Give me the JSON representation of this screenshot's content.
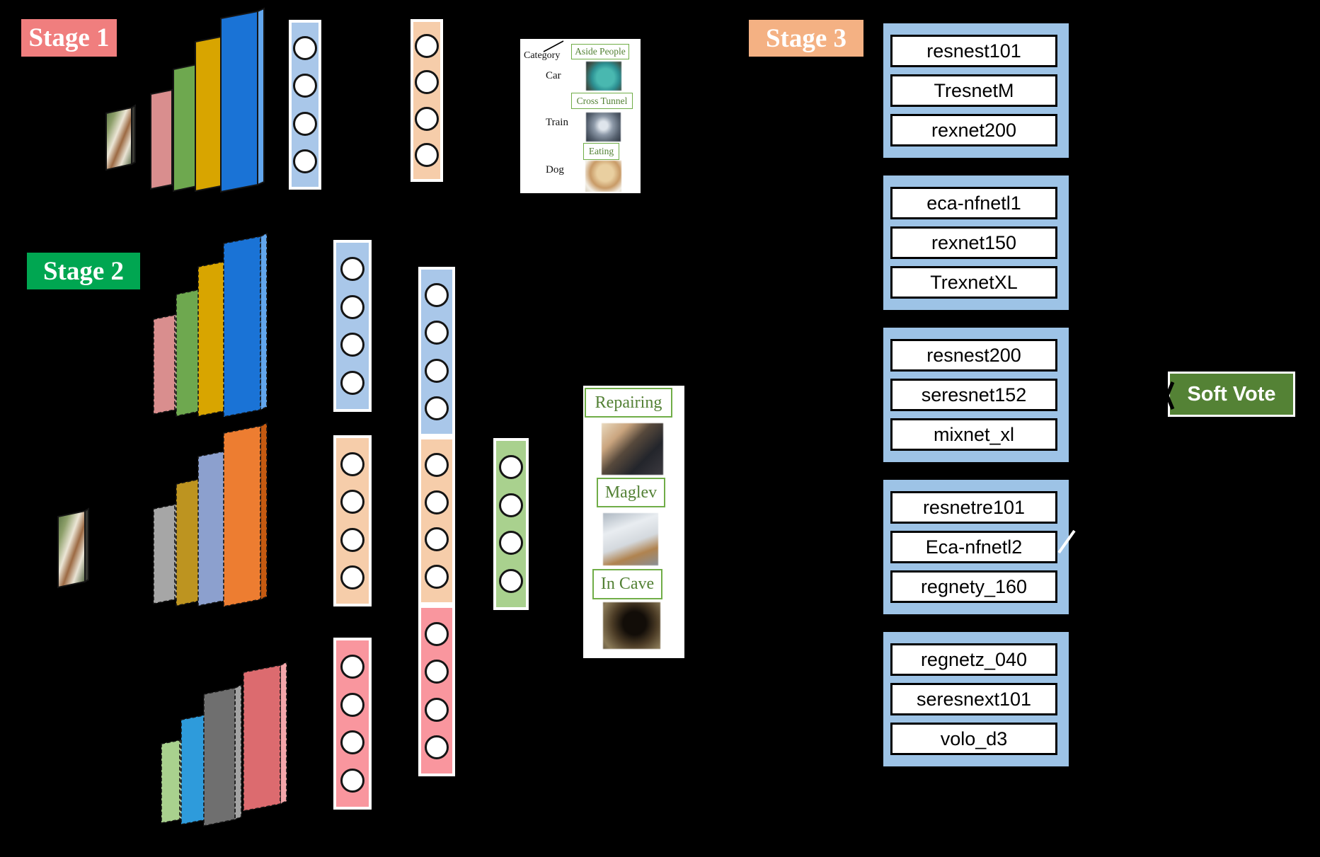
{
  "stages": [
    {
      "label": "Stage 1",
      "bg": "#F07E7E"
    },
    {
      "label": "Stage 2",
      "bg": "#00A651"
    },
    {
      "label": "Stage 3",
      "bg": "#F4B183"
    }
  ],
  "stage1": {
    "category_card": {
      "header": "Category",
      "rows": [
        {
          "category": "Car",
          "prediction": "Aside People",
          "image": "car"
        },
        {
          "category": "Train",
          "prediction": "Cross Tunnel",
          "image": "train"
        },
        {
          "category": "Dog",
          "prediction": "Eating",
          "image": "dog"
        }
      ]
    }
  },
  "stage2": {
    "prediction_card": {
      "rows": [
        {
          "prediction": "Repairing",
          "image": "repairing"
        },
        {
          "prediction": "Maglev",
          "image": "maglev"
        },
        {
          "prediction": "In Cave",
          "image": "cave"
        }
      ]
    }
  },
  "stage3": {
    "model_groups": [
      [
        "resnest101",
        "TresnetM",
        "rexnet200"
      ],
      [
        "eca-nfnetl1",
        "rexnet150",
        "TrexnetXL"
      ],
      [
        "resnest200",
        "seresnet152",
        "mixnet_xl"
      ],
      [
        "resnetre101",
        "Eca-nfnetl2",
        "regnety_160"
      ],
      [
        "regnetz_040",
        "seresnext101",
        "volo_d3"
      ]
    ],
    "soft_vote_label": "Soft Vote"
  },
  "palette": {
    "stack1": [
      {
        "face": "#D98E8E",
        "side": "#F0C0C0"
      },
      {
        "face": "#6EA84F",
        "side": "#A8D08D"
      },
      {
        "face": "#D8A500",
        "side": "#FFC81E"
      },
      {
        "face": "#1A73D6",
        "side": "#62A6EC"
      }
    ],
    "stack2a": [
      {
        "face": "#D98E8E",
        "side": "#F0C0C0"
      },
      {
        "face": "#6EA84F",
        "side": "#A8D08D"
      },
      {
        "face": "#D8A500",
        "side": "#FFC81E"
      },
      {
        "face": "#1A73D6",
        "side": "#62A6EC"
      }
    ],
    "stack2b": [
      {
        "face": "#A6A6A6",
        "side": "#D2D2D2"
      },
      {
        "face": "#BD9420",
        "side": "#E6C34C"
      },
      {
        "face": "#8CA0CE",
        "side": "#C2CEE8"
      },
      {
        "face": "#ED7D31",
        "side": "#C55A11"
      }
    ],
    "stack2c": [
      {
        "face": "#A9D18E",
        "side": "#CDE5BB"
      },
      {
        "face": "#2E9BDB",
        "side": "#83C4EC"
      },
      {
        "face": "#6F6F6F",
        "side": "#A3A3A3"
      },
      {
        "face": "#DC6B6F",
        "side": "#F4A6AA"
      }
    ],
    "columns": {
      "blue": "#A9C7E9",
      "orange": "#F6CDAA",
      "red": "#F9969E",
      "green": "#A9D18E"
    },
    "group_bg": "#9DC3E6",
    "soft_vote_bg": "#548235",
    "tag_text": "#538135",
    "tag_border": "#70AD47"
  }
}
